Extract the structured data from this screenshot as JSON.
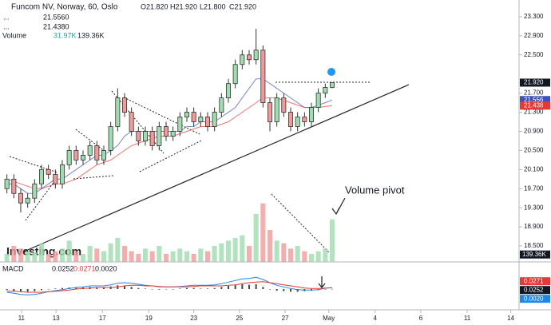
{
  "chart_data": {
    "type": "candlestick",
    "title": "Funcom NV, Norway, 60, Oslo",
    "ohlc_legend": [
      "O21.820",
      "H21.920",
      "L21.800",
      "C21.920"
    ],
    "x": [
      1,
      2,
      3,
      4,
      5,
      6,
      7,
      8,
      9,
      10,
      11,
      12,
      13,
      14,
      15,
      16,
      17,
      18,
      19,
      20,
      21,
      22,
      23,
      24,
      25,
      26,
      27,
      28,
      29,
      30,
      31,
      32,
      33,
      34,
      35,
      36,
      37,
      38,
      39,
      40,
      41,
      42,
      43,
      44,
      45,
      46,
      47,
      48
    ],
    "xlim": [
      0,
      75
    ],
    "xticks": [
      {
        "value": 3.1,
        "label": "11"
      },
      {
        "value": 8.1,
        "label": "13"
      },
      {
        "value": 14.8,
        "label": "17"
      },
      {
        "value": 21.5,
        "label": "19"
      },
      {
        "value": 28,
        "label": "23"
      },
      {
        "value": 34.6,
        "label": "25"
      },
      {
        "value": 41.2,
        "label": "27"
      },
      {
        "value": 47.5,
        "label": "May"
      },
      {
        "value": 54.2,
        "label": "4"
      },
      {
        "value": 60.8,
        "label": "6"
      },
      {
        "value": 67.5,
        "label": "11"
      },
      {
        "value": 73.8,
        "label": "14"
      }
    ],
    "open": [
      19.7,
      19.9,
      19.6,
      19.4,
      19.5,
      19.8,
      20.1,
      20.0,
      19.8,
      20.2,
      20.5,
      20.3,
      20.4,
      20.6,
      20.3,
      20.5,
      21.0,
      21.6,
      21.3,
      20.9,
      20.7,
      20.9,
      20.6,
      21.0,
      20.8,
      20.9,
      21.2,
      21.3,
      21.1,
      21.2,
      21.0,
      21.3,
      21.6,
      21.9,
      22.3,
      22.5,
      22.4,
      22.6,
      21.5,
      21.1,
      21.6,
      21.3,
      21.0,
      21.2,
      21.1,
      21.4,
      21.7,
      21.82
    ],
    "high": [
      20.0,
      20.0,
      19.7,
      19.6,
      19.9,
      20.2,
      20.2,
      20.1,
      20.3,
      20.6,
      20.6,
      20.5,
      20.7,
      20.7,
      20.6,
      21.1,
      21.8,
      21.7,
      21.4,
      21.0,
      21.0,
      21.0,
      21.1,
      21.1,
      21.0,
      21.3,
      21.4,
      21.4,
      21.3,
      21.3,
      21.4,
      21.7,
      22.0,
      22.4,
      22.6,
      22.6,
      23.05,
      22.7,
      21.6,
      21.7,
      21.7,
      21.4,
      21.3,
      21.3,
      21.5,
      21.8,
      21.9,
      21.92
    ],
    "low": [
      19.6,
      19.5,
      19.2,
      19.3,
      19.4,
      19.7,
      19.9,
      19.7,
      19.7,
      20.1,
      20.2,
      20.2,
      20.3,
      20.2,
      20.2,
      20.4,
      20.9,
      21.2,
      20.8,
      20.6,
      20.6,
      20.5,
      20.5,
      20.7,
      20.7,
      20.8,
      21.1,
      21.0,
      21.0,
      20.9,
      20.9,
      21.2,
      21.5,
      21.8,
      22.2,
      22.3,
      22.3,
      21.4,
      20.9,
      21.0,
      21.2,
      20.9,
      20.9,
      21.0,
      21.0,
      21.3,
      21.6,
      21.8
    ],
    "close": [
      19.9,
      19.6,
      19.4,
      19.5,
      19.8,
      20.1,
      20.0,
      19.8,
      20.2,
      20.5,
      20.3,
      20.4,
      20.6,
      20.3,
      20.5,
      21.0,
      21.6,
      21.3,
      20.9,
      20.7,
      20.9,
      20.6,
      21.0,
      20.8,
      20.9,
      21.2,
      21.3,
      21.1,
      21.2,
      21.0,
      21.3,
      21.6,
      21.9,
      22.3,
      22.5,
      22.4,
      22.6,
      21.5,
      21.1,
      21.6,
      21.3,
      21.0,
      21.2,
      21.1,
      21.4,
      21.7,
      21.82,
      21.92
    ],
    "up_color": "#9fdcae",
    "down_color": "#f19a9a",
    "ylim": [
      18.3,
      23.65
    ],
    "yticks": [
      {
        "value": 23.3,
        "label": "23.300"
      },
      {
        "value": 22.9,
        "label": "22.900"
      },
      {
        "value": 22.5,
        "label": "22.500"
      },
      {
        "value": 21.7,
        "label": "21.700"
      },
      {
        "value": 21.3,
        "label": "21.300"
      },
      {
        "value": 20.9,
        "label": "20.900"
      },
      {
        "value": 20.5,
        "label": "20.500"
      },
      {
        "value": 20.1,
        "label": "20.100"
      },
      {
        "value": 19.7,
        "label": "19.700"
      },
      {
        "value": 19.3,
        "label": "19.300"
      },
      {
        "value": 18.9,
        "label": "18.900"
      },
      {
        "value": 18.5,
        "label": "18.500"
      }
    ],
    "price_tags": [
      {
        "value": 21.92,
        "label": "21.920",
        "color": "#131722"
      },
      {
        "value": 21.556,
        "label": "21.556",
        "color": "#3f51b5"
      },
      {
        "value": 21.438,
        "label": "21.438",
        "color": "#e53935"
      }
    ],
    "overlays": [
      {
        "legend": "21.5560",
        "color": "#3f51b5",
        "values": [
          19.8,
          19.8,
          19.7,
          19.6,
          19.6,
          19.7,
          19.8,
          19.9,
          19.9,
          20.0,
          20.1,
          20.2,
          20.3,
          20.4,
          20.4,
          20.5,
          20.6,
          20.8,
          20.9,
          20.9,
          20.9,
          20.9,
          20.9,
          20.9,
          20.9,
          20.9,
          21.0,
          21.0,
          21.1,
          21.1,
          21.1,
          21.2,
          21.3,
          21.4,
          21.6,
          21.8,
          22.0,
          22.0,
          21.9,
          21.8,
          21.7,
          21.6,
          21.5,
          21.4,
          21.4,
          21.45,
          21.5,
          21.556
        ]
      },
      {
        "legend": "21.4380",
        "color": "#e53935",
        "values": [
          19.9,
          19.85,
          19.8,
          19.75,
          19.7,
          19.7,
          19.75,
          19.8,
          19.8,
          19.85,
          19.9,
          20.0,
          20.1,
          20.2,
          20.25,
          20.3,
          20.4,
          20.5,
          20.6,
          20.65,
          20.7,
          20.75,
          20.8,
          20.8,
          20.8,
          20.85,
          20.9,
          20.95,
          21.0,
          21.0,
          21.0,
          21.05,
          21.1,
          21.2,
          21.3,
          21.4,
          21.5,
          21.6,
          21.6,
          21.6,
          21.55,
          21.5,
          21.45,
          21.4,
          21.4,
          21.4,
          21.42,
          21.438
        ]
      }
    ],
    "volume": {
      "label": "Volume",
      "legend": [
        "31.97K",
        "139.36K"
      ],
      "ylim": [
        0,
        1200000
      ],
      "values": [
        150000,
        300000,
        250000,
        200000,
        180000,
        350000,
        150000,
        200000,
        250000,
        400000,
        200000,
        150000,
        300000,
        250000,
        200000,
        350000,
        450000,
        300000,
        200000,
        150000,
        250000,
        200000,
        300000,
        150000,
        200000,
        250000,
        200000,
        150000,
        250000,
        200000,
        300000,
        350000,
        400000,
        450000,
        500000,
        300000,
        900000,
        1100000,
        600000,
        400000,
        350000,
        250000,
        300000,
        200000,
        150000,
        200000,
        250000,
        800000
      ],
      "tag": {
        "value": 139360,
        "label": "139.36K"
      }
    },
    "macd": {
      "label": "MACD",
      "legend": [
        "0.0252",
        "0.0271",
        "0.0020"
      ],
      "ylim": [
        -0.3,
        0.3
      ],
      "histogram": [
        -0.02,
        -0.04,
        -0.05,
        -0.05,
        -0.04,
        -0.02,
        0,
        0.01,
        0.02,
        0.03,
        0.03,
        0.03,
        0.04,
        0.03,
        0.03,
        0.05,
        0.07,
        0.06,
        0.04,
        0.02,
        0.01,
        0,
        -0.01,
        0,
        0,
        0.01,
        0.02,
        0.02,
        0.01,
        0.01,
        0.02,
        0.04,
        0.06,
        0.08,
        0.09,
        0.08,
        0.09,
        0.04,
        0,
        -0.03,
        -0.04,
        -0.05,
        -0.05,
        -0.04,
        -0.03,
        -0.02,
        -0.005,
        0.002
      ],
      "macd": [
        -0.06,
        -0.08,
        -0.1,
        -0.11,
        -0.1,
        -0.08,
        -0.05,
        -0.03,
        -0.01,
        0.01,
        0.03,
        0.04,
        0.06,
        0.06,
        0.06,
        0.08,
        0.11,
        0.12,
        0.11,
        0.09,
        0.07,
        0.06,
        0.04,
        0.04,
        0.04,
        0.05,
        0.06,
        0.07,
        0.07,
        0.07,
        0.08,
        0.1,
        0.13,
        0.16,
        0.19,
        0.2,
        0.22,
        0.18,
        0.12,
        0.07,
        0.04,
        0.01,
        -0.01,
        -0.02,
        -0.02,
        -0.01,
        0.015,
        0.0252
      ],
      "signal": [
        -0.04,
        -0.04,
        -0.05,
        -0.06,
        -0.06,
        -0.06,
        -0.05,
        -0.04,
        -0.03,
        -0.02,
        0,
        0.01,
        0.02,
        0.03,
        0.03,
        0.03,
        0.04,
        0.06,
        0.07,
        0.07,
        0.06,
        0.06,
        0.05,
        0.04,
        0.04,
        0.04,
        0.04,
        0.05,
        0.06,
        0.06,
        0.06,
        0.06,
        0.07,
        0.08,
        0.1,
        0.12,
        0.13,
        0.14,
        0.12,
        0.1,
        0.08,
        0.06,
        0.04,
        0.02,
        0.01,
        0.01,
        0.02,
        0.0271
      ],
      "tags": [
        {
          "value": 0.0271,
          "label": "0.0271",
          "color": "#e53935"
        },
        {
          "value": 0.0252,
          "label": "0.0252",
          "color": "#131722"
        },
        {
          "value": 0.002,
          "label": "0.0020",
          "color": "#1e88e5"
        }
      ]
    },
    "annotation": "Volume pivot",
    "logo": "Investing.com"
  }
}
